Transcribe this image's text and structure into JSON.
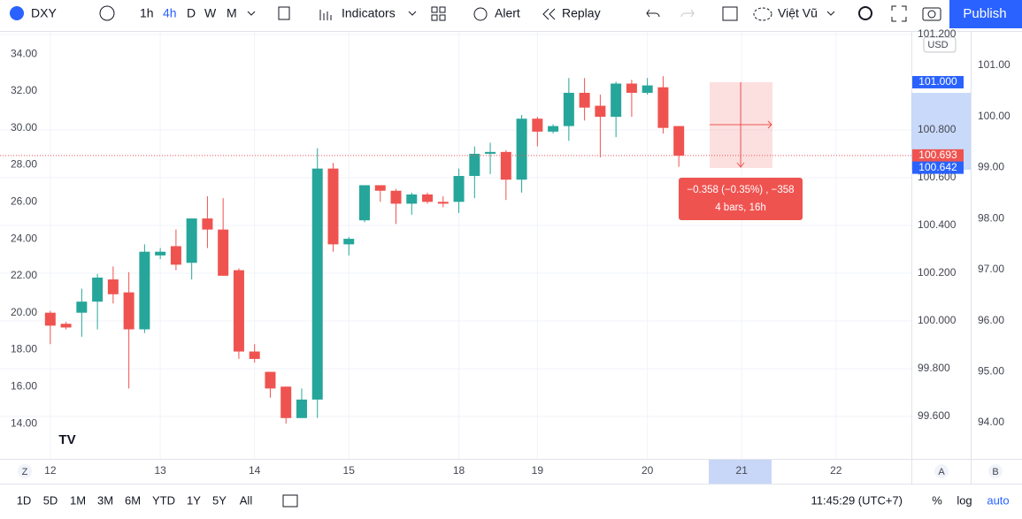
{
  "toolbar": {
    "symbol": "DXY",
    "intervals": [
      "1h",
      "4h",
      "D",
      "W",
      "M"
    ],
    "indicators": "Indicators",
    "alert": "Alert",
    "replay": "Replay",
    "layout": "Việt Vũ",
    "publish": "Publish"
  },
  "bottom_bar": {
    "ranges": [
      "1D",
      "5D",
      "1M",
      "3M",
      "6M",
      "YTD",
      "1Y",
      "5Y",
      "All"
    ],
    "clock": "11:45:29 (UTC+7)",
    "percent": "%",
    "log": "log",
    "auto": "auto"
  },
  "axis_corner": {
    "left": "Z",
    "scale_a": "A",
    "scale_b": "B",
    "currency": "USD"
  },
  "chart_data": {
    "type": "candlestick",
    "up_color": "#26a69a",
    "down_color": "#ef5350",
    "x": [
      0,
      1,
      2,
      3,
      4,
      5,
      6,
      7,
      8,
      9,
      10,
      11,
      12,
      13,
      14,
      15,
      16,
      17,
      18,
      19,
      20,
      21,
      22,
      23,
      24,
      25,
      26,
      27,
      28,
      29,
      30,
      31,
      32,
      33,
      34,
      35,
      36,
      37,
      38,
      39,
      40
    ],
    "open": [
      20.0,
      19.4,
      20.0,
      20.6,
      21.8,
      21.1,
      19.1,
      23.1,
      23.6,
      22.7,
      25.1,
      24.5,
      22.3,
      17.9,
      16.8,
      16.0,
      14.3,
      15.3,
      27.8,
      23.7,
      25.0,
      26.9,
      26.6,
      25.9,
      26.4,
      26.0,
      26.0,
      27.4,
      28.6,
      28.7,
      27.2,
      30.5,
      29.8,
      30.1,
      31.9,
      31.2,
      30.6,
      32.4,
      31.9,
      32.2,
      30.1
    ],
    "high": [
      20.1,
      19.5,
      21.3,
      22.1,
      22.5,
      22.2,
      23.7,
      23.5,
      24.5,
      25.1,
      26.3,
      26.2,
      22.4,
      18.3,
      16.8,
      16.0,
      15.9,
      28.9,
      28.1,
      24.1,
      26.9,
      26.9,
      26.7,
      26.5,
      26.5,
      26.3,
      27.8,
      29.0,
      29.2,
      28.8,
      30.7,
      30.6,
      30.2,
      32.7,
      32.7,
      31.8,
      32.5,
      32.6,
      32.7,
      32.8,
      30.1
    ],
    "low": [
      18.3,
      19.1,
      18.7,
      19.1,
      20.5,
      15.9,
      18.9,
      22.9,
      22.3,
      21.8,
      23.5,
      22.0,
      17.5,
      17.3,
      15.4,
      14.0,
      14.3,
      14.3,
      23.3,
      23.1,
      24.9,
      26.0,
      24.8,
      25.3,
      25.9,
      25.7,
      25.4,
      26.2,
      27.5,
      26.1,
      26.5,
      29.0,
      29.7,
      29.3,
      30.4,
      28.4,
      29.5,
      30.6,
      31.8,
      29.7,
      27.9
    ],
    "close": [
      19.3,
      19.2,
      20.6,
      21.9,
      21.0,
      19.1,
      23.3,
      23.3,
      22.6,
      25.1,
      24.5,
      22.0,
      17.9,
      17.5,
      15.9,
      14.3,
      15.3,
      27.8,
      23.7,
      24.0,
      26.9,
      26.6,
      25.9,
      26.4,
      26.0,
      25.9,
      27.4,
      28.6,
      28.7,
      27.2,
      30.5,
      29.8,
      30.1,
      31.9,
      31.1,
      30.6,
      32.4,
      31.9,
      32.3,
      30.0,
      28.5
    ],
    "xlim": [
      -3.2,
      54.8
    ],
    "xticks": [
      {
        "value": 0,
        "label": "12"
      },
      {
        "value": 7,
        "label": "13"
      },
      {
        "value": 13,
        "label": "14"
      },
      {
        "value": 19,
        "label": "15"
      },
      {
        "value": 26,
        "label": "18"
      },
      {
        "value": 31,
        "label": "19"
      },
      {
        "value": 38,
        "label": "20"
      },
      {
        "value": 44,
        "label": "21"
      },
      {
        "value": 50,
        "label": "22"
      }
    ],
    "ylim": [
      12.09,
      35.2
    ],
    "yticks": [
      {
        "value": 14,
        "label": "14.00"
      },
      {
        "value": 16,
        "label": "16.00"
      },
      {
        "value": 18,
        "label": "18.00"
      },
      {
        "value": 20,
        "label": "20.00"
      },
      {
        "value": 22,
        "label": "22.00"
      },
      {
        "value": 24,
        "label": "24.00"
      },
      {
        "value": 26,
        "label": "26.00"
      },
      {
        "value": 28,
        "label": "28.00"
      },
      {
        "value": 30,
        "label": "30.00"
      },
      {
        "value": 32,
        "label": "32.00"
      },
      {
        "value": 34,
        "label": "34.00"
      }
    ],
    "y2lim": [
      99.422,
      101.211
    ],
    "y2ticks": [
      {
        "value": 99.6,
        "label": "99.600"
      },
      {
        "value": 99.8,
        "label": "99.800"
      },
      {
        "value": 100.0,
        "label": "100.000"
      },
      {
        "value": 100.2,
        "label": "100.200"
      },
      {
        "value": 100.4,
        "label": "100.400"
      },
      {
        "value": 100.6,
        "label": "100.600"
      },
      {
        "value": 100.8,
        "label": "100.800"
      },
      {
        "value": 101.2,
        "label": "101.200"
      }
    ],
    "y3lim": [
      93.29,
      101.658
    ],
    "y3ticks": [
      {
        "value": 94,
        "label": "94.00"
      },
      {
        "value": 95,
        "label": "95.00"
      },
      {
        "value": 96,
        "label": "96.00"
      },
      {
        "value": 97,
        "label": "97.00"
      },
      {
        "value": 98,
        "label": "98.00"
      },
      {
        "value": 99,
        "label": "99.00"
      },
      {
        "value": 100,
        "label": "100.00"
      },
      {
        "value": 101,
        "label": "101.00"
      }
    ],
    "price_tags": [
      {
        "value": 101.0,
        "label": "101.000",
        "color": "#2962ff"
      },
      {
        "value": 100.693,
        "label": "100.693",
        "color": "#ef5350"
      },
      {
        "value": 100.642,
        "label": "100.642",
        "color": "#2962ff"
      }
    ],
    "grid": true,
    "measure": {
      "change": "−0.358 (−0.35%) , −358",
      "span": "4 bars, 16h"
    }
  }
}
